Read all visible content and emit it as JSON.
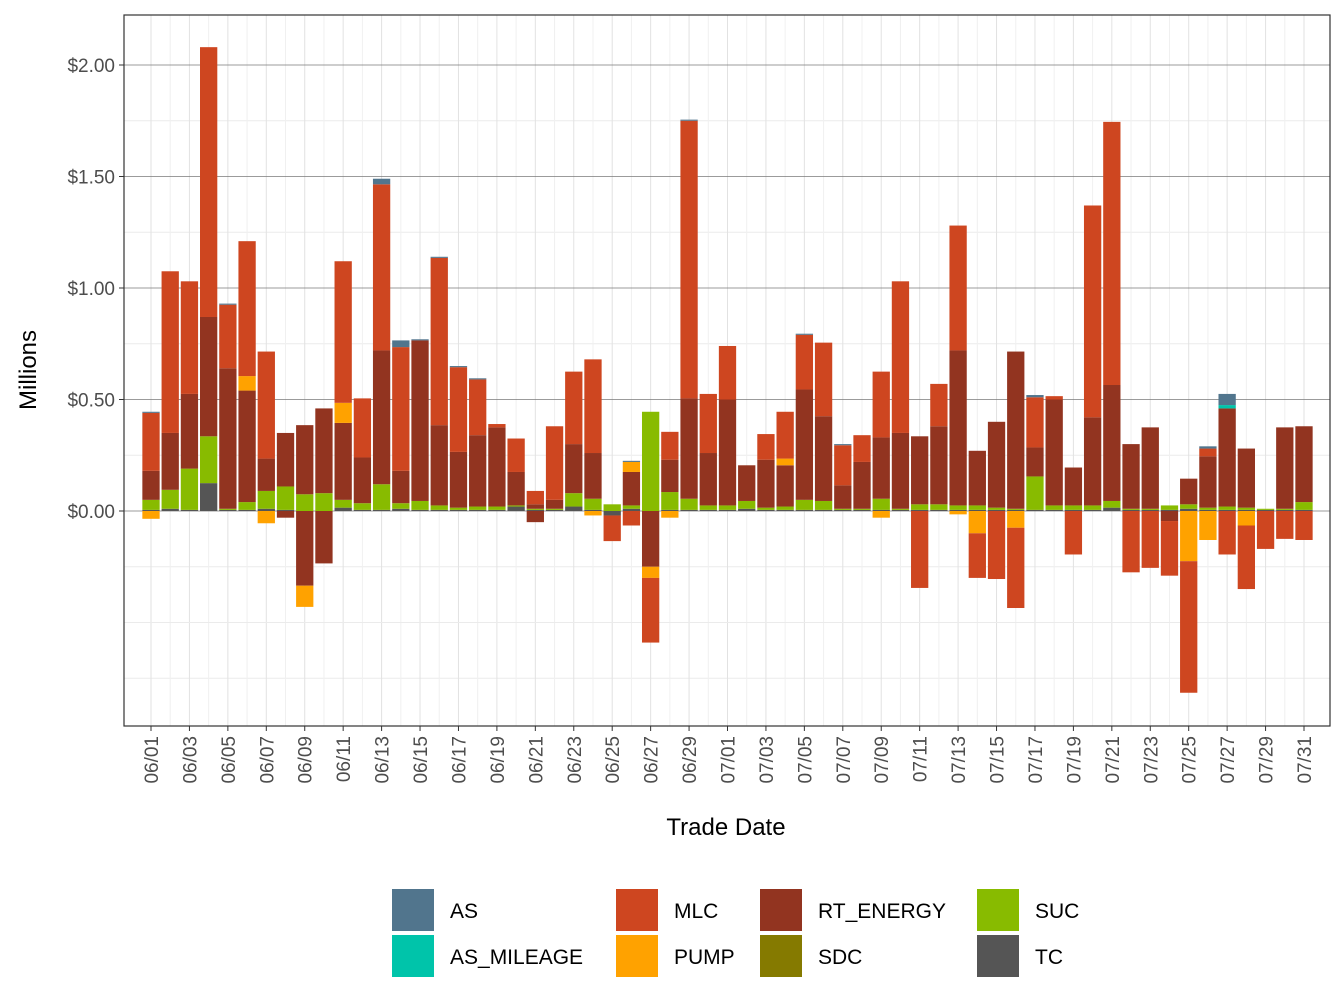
{
  "chart_data": {
    "type": "bar",
    "stacked": true,
    "xlabel": "Trade Date",
    "ylabel": "Millions",
    "ylim": [
      -0.97,
      2.22
    ],
    "y_ticks": [
      0.0,
      0.5,
      1.0,
      1.5,
      2.0
    ],
    "y_tick_labels": [
      "$0.00",
      "$0.50",
      "$1.00",
      "$1.50",
      "$2.00"
    ],
    "categories": [
      "06/01",
      "06/02",
      "06/03",
      "06/04",
      "06/05",
      "06/06",
      "06/07",
      "06/08",
      "06/09",
      "06/10",
      "06/11",
      "06/12",
      "06/13",
      "06/14",
      "06/15",
      "06/16",
      "06/17",
      "06/18",
      "06/19",
      "06/20",
      "06/21",
      "06/22",
      "06/23",
      "06/24",
      "06/25",
      "06/26",
      "06/27",
      "06/28",
      "06/29",
      "06/30",
      "07/01",
      "07/02",
      "07/03",
      "07/04",
      "07/05",
      "07/06",
      "07/07",
      "07/08",
      "07/09",
      "07/10",
      "07/11",
      "07/12",
      "07/13",
      "07/14",
      "07/15",
      "07/16",
      "07/17",
      "07/18",
      "07/19",
      "07/20",
      "07/21",
      "07/22",
      "07/23",
      "07/24",
      "07/25",
      "07/26",
      "07/27",
      "07/28",
      "07/29",
      "07/30",
      "07/31"
    ],
    "x_tick_labels": [
      "06/01",
      "06/03",
      "06/05",
      "06/07",
      "06/09",
      "06/11",
      "06/13",
      "06/15",
      "06/17",
      "06/19",
      "06/21",
      "06/23",
      "06/25",
      "06/27",
      "06/29",
      "07/01",
      "07/03",
      "07/05",
      "07/07",
      "07/09",
      "07/11",
      "07/13",
      "07/15",
      "07/17",
      "07/19",
      "07/21",
      "07/23",
      "07/25",
      "07/27",
      "07/29",
      "07/31"
    ],
    "grid": true,
    "legend_position": "bottom",
    "series": [
      {
        "name": "TC",
        "color": "#555555",
        "values": [
          0.005,
          0.01,
          0.005,
          0.125,
          0.005,
          0.005,
          0.01,
          0.005,
          0,
          0,
          0.015,
          0.005,
          0.005,
          0.01,
          0.005,
          0.005,
          0.005,
          0.005,
          0.005,
          0.02,
          0.005,
          0.005,
          0.02,
          0.005,
          0,
          0.01,
          0,
          0.005,
          0.005,
          0.005,
          0.005,
          0.01,
          0.005,
          0.005,
          0.005,
          0.005,
          0.005,
          0.005,
          0.005,
          0.005,
          0.005,
          0.005,
          0.005,
          0.005,
          0.005,
          0.005,
          0.005,
          0.005,
          0.005,
          0.005,
          0.015,
          0.005,
          0.005,
          0.005,
          0.01,
          0.005,
          0.005,
          0.005,
          0.005,
          0.005,
          0.005
        ]
      },
      {
        "name": "SDC",
        "color": "#857a00",
        "values": [
          0,
          0,
          0,
          0,
          0,
          0,
          0,
          0,
          0,
          0,
          0,
          0,
          0,
          0,
          0,
          0,
          0,
          0,
          0,
          0,
          0,
          0,
          0,
          0,
          0,
          0,
          0,
          0,
          0,
          0,
          0,
          0,
          0,
          0,
          0,
          0,
          0,
          0,
          0,
          0,
          0,
          0,
          0,
          0,
          0,
          0,
          0,
          0,
          0,
          0,
          0,
          0,
          0,
          0,
          0,
          0,
          0,
          0,
          0,
          0,
          0
        ]
      },
      {
        "name": "SUC",
        "color": "#88bb00",
        "values": [
          0.045,
          0.085,
          0.185,
          0.21,
          0.005,
          0.035,
          0.08,
          0.105,
          0.075,
          0.08,
          0.035,
          0.03,
          0.115,
          0.025,
          0.04,
          0.02,
          0.01,
          0.015,
          0.015,
          0.005,
          0.005,
          0.005,
          0.06,
          0.05,
          0.03,
          0.015,
          0.445,
          0.08,
          0.05,
          0.02,
          0.02,
          0.035,
          0.01,
          0.015,
          0.045,
          0.04,
          0.005,
          0.005,
          0.05,
          0.005,
          0.025,
          0.025,
          0.02,
          0.02,
          0.01,
          0.005,
          0.15,
          0.02,
          0.02,
          0.02,
          0.03,
          0.005,
          0.005,
          0.02,
          0.02,
          0.01,
          0.015,
          0.01,
          0.005,
          0.005,
          0.035
        ]
      },
      {
        "name": "RT_ENERGY",
        "color": "#923420",
        "values": [
          0.13,
          0.255,
          0.335,
          0.535,
          0.63,
          0.5,
          0.145,
          0.24,
          0.31,
          0.38,
          0.345,
          0.205,
          0.6,
          0.145,
          0.72,
          0.36,
          0.25,
          0.32,
          0.355,
          0.15,
          0.02,
          0.04,
          0.22,
          0.205,
          0,
          0.15,
          0,
          0.145,
          0.45,
          0.235,
          0.475,
          0.16,
          0.215,
          0.185,
          0.495,
          0.38,
          0.105,
          0.21,
          0.275,
          0.34,
          0.305,
          0.35,
          0.695,
          0.245,
          0.385,
          0.705,
          0.13,
          0.475,
          0.17,
          0.395,
          0.52,
          0.29,
          0.365,
          0,
          0.115,
          0.23,
          0.44,
          0.265,
          0,
          0.365,
          0.34
        ]
      },
      {
        "name": "PUMP",
        "color": "#ffa200",
        "values": [
          0,
          0,
          0,
          0,
          0,
          0.065,
          0,
          0,
          0,
          0,
          0.09,
          0,
          0,
          0,
          0,
          0,
          0,
          0,
          0,
          0,
          0,
          0,
          0,
          0,
          0,
          0.045,
          0,
          0,
          0,
          0,
          0,
          0,
          0,
          0.03,
          0,
          0,
          0,
          0,
          0,
          0,
          0,
          0,
          0,
          0,
          0,
          0,
          0,
          0,
          0,
          0,
          0,
          0,
          0,
          0,
          0,
          0,
          0,
          0,
          0,
          0,
          0
        ]
      },
      {
        "name": "MLC",
        "color": "#ce4620",
        "values": [
          0.26,
          0.725,
          0.505,
          1.21,
          0.285,
          0.605,
          0.48,
          0,
          0,
          0,
          0.635,
          0.265,
          0.745,
          0.555,
          0,
          0.75,
          0.38,
          0.25,
          0.015,
          0.15,
          0.06,
          0.33,
          0.325,
          0.42,
          0,
          0,
          0,
          0.125,
          1.245,
          0.265,
          0.24,
          0,
          0.115,
          0.21,
          0.245,
          0.33,
          0.18,
          0.12,
          0.295,
          0.68,
          0,
          0.19,
          0.56,
          0,
          0,
          0,
          0.225,
          0.015,
          0,
          0.95,
          1.18,
          0,
          0,
          0,
          0,
          0.035,
          0,
          0,
          0,
          0,
          0
        ]
      },
      {
        "name": "AS_MILEAGE",
        "color": "#00c4aa",
        "values": [
          0,
          0,
          0,
          0,
          0,
          0,
          0,
          0,
          0,
          0,
          0,
          0,
          0,
          0,
          0,
          0,
          0,
          0,
          0,
          0,
          0,
          0,
          0,
          0,
          0,
          0,
          0,
          0,
          0,
          0,
          0,
          0,
          0,
          0,
          0,
          0,
          0,
          0,
          0,
          0,
          0,
          0,
          0,
          0,
          0,
          0,
          0,
          0,
          0,
          0,
          0,
          0,
          0,
          0,
          0,
          0,
          0.015,
          0,
          0,
          0,
          0
        ]
      },
      {
        "name": "AS",
        "color": "#51758d",
        "values": [
          0.005,
          0,
          0,
          0,
          0.005,
          0,
          0,
          0,
          0,
          0,
          0,
          0,
          0.025,
          0.03,
          0.005,
          0.005,
          0.005,
          0.005,
          0,
          0,
          0,
          0,
          0,
          0,
          0,
          0.005,
          0,
          0,
          0.005,
          0,
          0,
          0,
          0,
          0,
          0.005,
          0,
          0.005,
          0,
          0,
          0,
          0,
          0,
          0,
          0,
          0,
          0,
          0.01,
          0,
          0,
          0,
          0,
          0,
          0,
          0,
          0,
          0.01,
          0.05,
          0,
          0,
          0,
          0
        ]
      },
      {
        "name": "TC_negative",
        "color": "#555555",
        "values": [
          0,
          0,
          0,
          0,
          0,
          0,
          0,
          0,
          0,
          0,
          0,
          0,
          0,
          0,
          0,
          0,
          0,
          0,
          0,
          0,
          0,
          0,
          0,
          0,
          -0.02,
          0,
          0,
          0,
          0,
          0,
          0,
          0,
          0,
          0,
          0,
          0,
          0,
          0,
          0,
          0,
          0,
          0,
          0,
          0,
          0,
          0,
          0,
          0,
          0,
          0,
          0,
          0,
          0,
          0,
          0,
          0,
          0,
          0,
          0,
          0,
          0
        ]
      },
      {
        "name": "RT_ENERGY_negative",
        "color": "#923420",
        "values": [
          0,
          0,
          0,
          0,
          0,
          0,
          0,
          -0.03,
          -0.335,
          -0.235,
          0,
          0,
          0,
          0,
          0,
          0,
          0,
          0,
          0,
          0,
          -0.05,
          0,
          0,
          0,
          0,
          0,
          -0.25,
          0,
          0,
          0,
          0,
          0,
          0,
          0,
          0,
          0,
          0,
          0,
          0,
          0,
          0,
          0,
          0,
          0,
          0,
          0,
          0,
          0,
          0,
          0,
          0,
          0,
          0,
          -0.045,
          0,
          0,
          0,
          0,
          0,
          0,
          0
        ]
      },
      {
        "name": "PUMP_negative",
        "color": "#ffa200",
        "values": [
          -0.035,
          0,
          0,
          0,
          0,
          0,
          -0.055,
          0,
          -0.095,
          0,
          0,
          0,
          0,
          0,
          0,
          0,
          0,
          0,
          0,
          0,
          0,
          0,
          0,
          -0.02,
          0,
          0,
          -0.05,
          -0.03,
          0,
          0,
          0,
          0,
          0,
          0,
          0,
          0,
          0,
          0,
          -0.03,
          0,
          0,
          0,
          -0.015,
          -0.1,
          0,
          -0.075,
          0,
          0,
          0,
          0,
          0,
          0,
          0,
          0,
          -0.225,
          -0.13,
          0,
          -0.065,
          0,
          0,
          0
        ]
      },
      {
        "name": "MLC_negative",
        "color": "#ce4620",
        "values": [
          0,
          0,
          0,
          0,
          0,
          0,
          0,
          0,
          0,
          0,
          0,
          0,
          0,
          0,
          0,
          0,
          0,
          0,
          0,
          0,
          0,
          0,
          0,
          0,
          -0.115,
          -0.065,
          -0.29,
          0,
          0,
          0,
          0,
          0,
          0,
          0,
          0,
          0,
          0,
          0,
          0,
          0,
          -0.345,
          0,
          0,
          -0.2,
          -0.305,
          -0.36,
          0,
          0,
          -0.195,
          0,
          0,
          -0.275,
          -0.255,
          -0.245,
          -0.59,
          0,
          -0.195,
          -0.285,
          -0.17,
          -0.125,
          -0.13
        ]
      }
    ],
    "legend": [
      {
        "name": "AS",
        "color": "#51758d"
      },
      {
        "name": "AS_MILEAGE",
        "color": "#00c4aa"
      },
      {
        "name": "MLC",
        "color": "#ce4620"
      },
      {
        "name": "PUMP",
        "color": "#ffa200"
      },
      {
        "name": "RT_ENERGY",
        "color": "#923420"
      },
      {
        "name": "SDC",
        "color": "#857a00"
      },
      {
        "name": "SUC",
        "color": "#88bb00"
      },
      {
        "name": "TC",
        "color": "#555555"
      }
    ]
  }
}
